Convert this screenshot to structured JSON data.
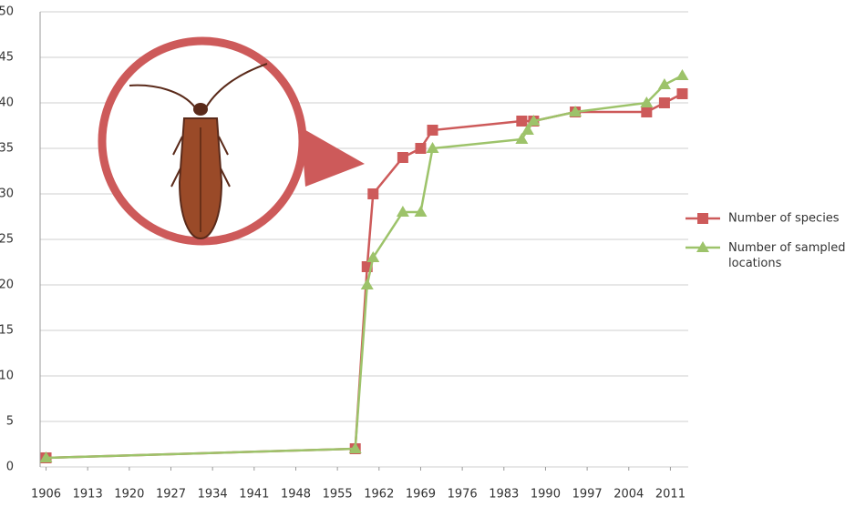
{
  "chart_data": {
    "type": "line",
    "series": [
      {
        "name": "Number of species",
        "color": "#cd5a5a",
        "marker": "square",
        "x": [
          1906,
          1958,
          1960,
          1961,
          1966,
          1969,
          1971,
          1986,
          1988,
          1995,
          2007,
          2010,
          2013
        ],
        "values": [
          1,
          2,
          22,
          30,
          34,
          35,
          37,
          38,
          38,
          39,
          39,
          40,
          41
        ]
      },
      {
        "name": "Number of sampled locations",
        "color": "#9dc36a",
        "marker": "triangle",
        "x": [
          1906,
          1958,
          1960,
          1961,
          1966,
          1969,
          1971,
          1986,
          1987,
          1988,
          1995,
          2007,
          2010,
          2013
        ],
        "values": [
          1,
          2,
          20,
          23,
          28,
          28,
          35,
          36,
          37,
          38,
          39,
          40,
          42,
          43
        ]
      }
    ],
    "xlim": [
      1905,
      2014
    ],
    "xticks": [
      1906,
      1913,
      1920,
      1927,
      1934,
      1941,
      1948,
      1955,
      1962,
      1969,
      1976,
      1983,
      1990,
      1997,
      2004,
      2011
    ],
    "ylim": [
      0,
      50
    ],
    "yticks": [
      0,
      5,
      10,
      15,
      20,
      25,
      30,
      35,
      40,
      45,
      50
    ],
    "grid": true,
    "legend": "right"
  }
}
